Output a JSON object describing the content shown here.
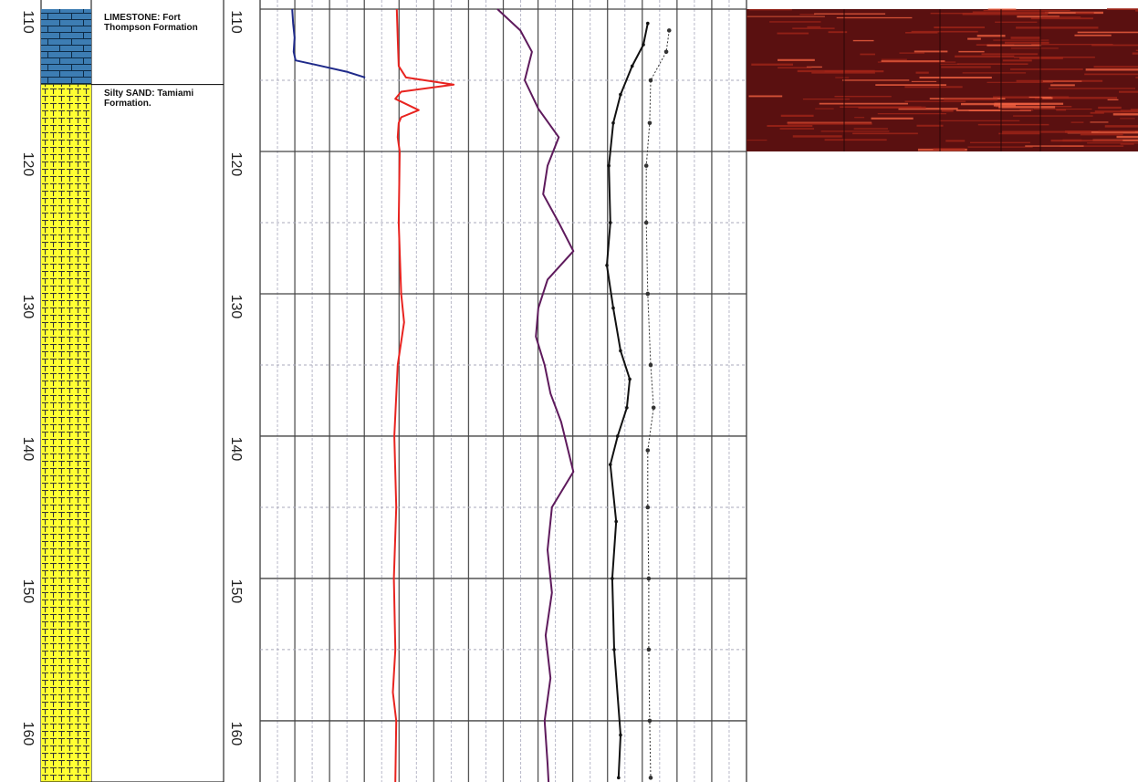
{
  "chart_data": {
    "type": "well-log",
    "ylim": [
      110,
      164.3
    ],
    "yticks": [
      110,
      120,
      130,
      140,
      150,
      160
    ],
    "xlim": [
      0,
      100
    ],
    "grid": true,
    "lithology": [
      {
        "top": 110,
        "bottom": 115.3,
        "pattern": "limestone",
        "color": "#3d7db3",
        "description": "LIMESTONE: Fort Thompson Formation"
      },
      {
        "top": 115.3,
        "bottom": 164.3,
        "pattern": "sand",
        "color": "#ffff33",
        "description": "Silty SAND: Tamiami Formation."
      }
    ],
    "image_log": {
      "top": 110,
      "bottom": 120,
      "color": "#5a1010"
    },
    "series": [
      {
        "color": "#1f2a8a",
        "style": "solid",
        "markers": false,
        "depths": [
          110,
          111,
          112,
          113,
          113.6,
          113.9,
          114.4,
          114.8
        ],
        "values": [
          6.6,
          6.8,
          7.1,
          6.9,
          7.3,
          11.3,
          17.8,
          21.6
        ]
      },
      {
        "color": "#e8231f",
        "style": "solid",
        "markers": false,
        "depths": [
          110,
          112,
          114,
          114.8,
          115.3,
          115.8,
          116.3,
          117.1,
          117.6,
          118,
          119,
          120,
          125,
          130,
          132,
          135,
          140,
          145,
          150,
          155,
          158,
          160,
          164.3
        ],
        "values": [
          28.1,
          28.3,
          28.5,
          30,
          39.8,
          29,
          27.8,
          32.6,
          29,
          28.5,
          28.3,
          28.7,
          28.5,
          29,
          29.6,
          28.3,
          27.6,
          28,
          27.5,
          27.8,
          27.3,
          28,
          27.8
        ]
      },
      {
        "color": "#5e1a5c",
        "style": "solid",
        "markers": false,
        "depths": [
          110,
          111.5,
          113,
          115,
          117,
          119,
          121,
          123,
          125,
          127,
          129,
          131,
          133,
          135,
          137,
          139,
          142.5,
          145,
          148,
          151,
          154,
          157,
          160,
          163,
          164.3
        ],
        "values": [
          48.8,
          53.5,
          55.9,
          54.4,
          57.2,
          61.4,
          59.1,
          58.2,
          61.4,
          64.4,
          59.1,
          57.2,
          56.7,
          58.5,
          59.7,
          61.9,
          64.4,
          60,
          59.1,
          60,
          58.7,
          59.7,
          58.5,
          59.1,
          59.3
        ]
      },
      {
        "color": "#111111",
        "style": "solid",
        "markers": true,
        "depths": [
          111,
          112.5,
          114,
          116,
          118,
          121,
          125,
          128,
          131,
          134,
          136,
          138,
          140,
          142,
          146,
          150,
          155,
          161,
          164
        ],
        "values": [
          79.7,
          78.8,
          76.5,
          74.1,
          72.6,
          71.7,
          72,
          71.3,
          72.6,
          74.1,
          76,
          75.4,
          73.5,
          72,
          73.2,
          72.4,
          72.8,
          74.1,
          73.7
        ]
      },
      {
        "color": "#333333",
        "style": "dotted",
        "markers": true,
        "depths": [
          111.5,
          113,
          115,
          118,
          121,
          125,
          130,
          135,
          138,
          141,
          145,
          150,
          155,
          160,
          164
        ],
        "values": [
          84.1,
          83.5,
          80.3,
          80.1,
          79.4,
          79.4,
          79.7,
          80.3,
          80.9,
          79.7,
          79.7,
          79.9,
          79.9,
          80.1,
          80.3
        ]
      }
    ]
  }
}
